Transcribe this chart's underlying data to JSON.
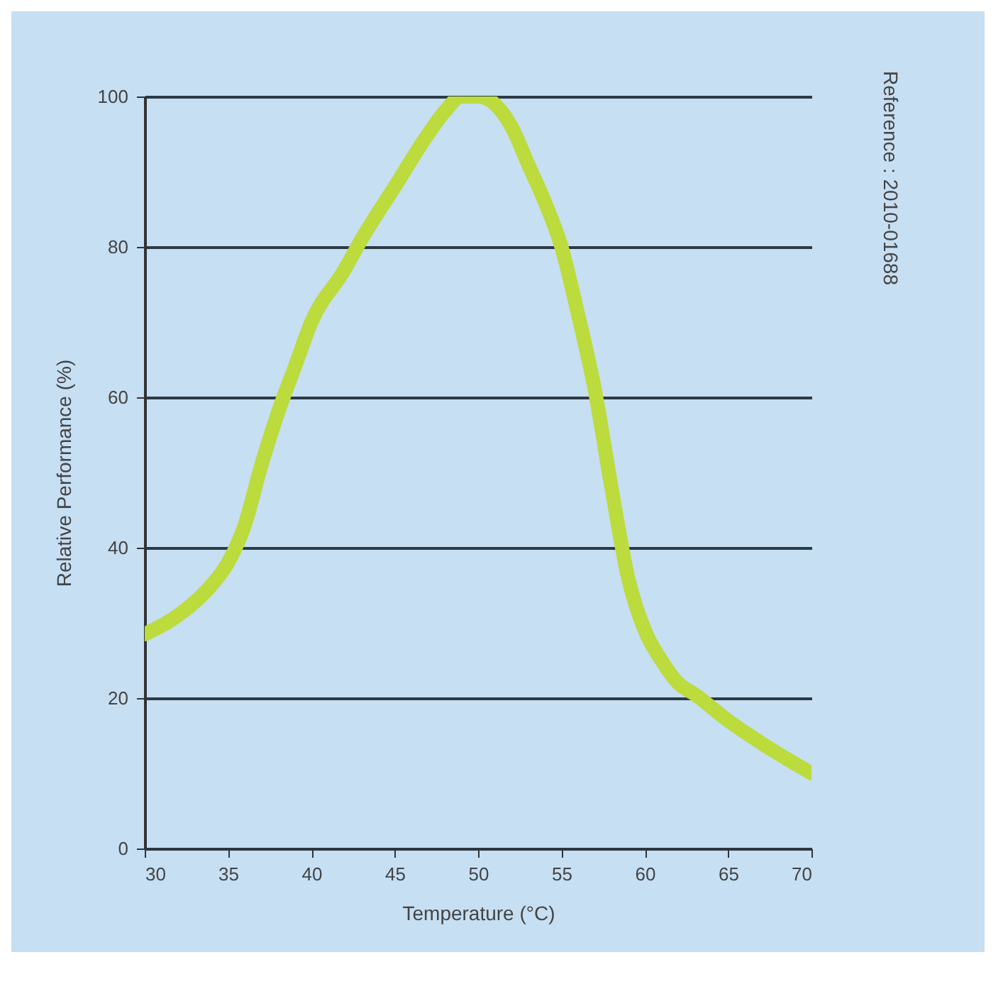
{
  "chart_data": {
    "type": "line",
    "xlabel": "Temperature (°C)",
    "ylabel": "Relative Performance (%)",
    "annotations": [
      "Reference : 2010-01688"
    ],
    "x": [
      30,
      32,
      34,
      35,
      36,
      37,
      38,
      39,
      40,
      42,
      43,
      45,
      47,
      48,
      49,
      50,
      51,
      52,
      53,
      54,
      55,
      56,
      57,
      58,
      59,
      60,
      61,
      62,
      63,
      65,
      67,
      70
    ],
    "series": [
      {
        "color": "#bcdb3c",
        "values": [
          28.5,
          31,
          35,
          38,
          43,
          51,
          58,
          64,
          70,
          77,
          81,
          88,
          95,
          98,
          100,
          100,
          99,
          96,
          91,
          86,
          80,
          71,
          61,
          48,
          36,
          29,
          25,
          22,
          20.5,
          17,
          14,
          10
        ]
      }
    ],
    "xlim": [
      30,
      70
    ],
    "xticks": [
      30,
      35,
      40,
      45,
      50,
      55,
      60,
      65,
      70
    ],
    "ylim": [
      0,
      100
    ],
    "yticks": [
      0,
      20,
      40,
      60,
      80,
      100
    ],
    "grid": "y",
    "line_style": "solid"
  }
}
